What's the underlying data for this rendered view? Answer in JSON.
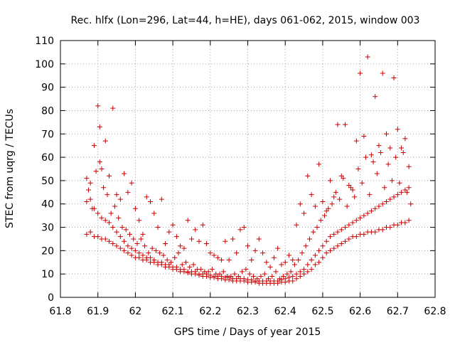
{
  "chart_data": {
    "type": "scatter",
    "title": "Rec. hlfx (Lon=296, Lat=44, h=HE), days 061-062, 2015, window 003",
    "xlabel": "GPS time / Days of year 2015",
    "ylabel": "STEC from uqrg / TECUs",
    "xlim": [
      61.8,
      62.8
    ],
    "ylim": [
      0,
      110
    ],
    "xticks": [
      "61.8",
      "61.9",
      "62",
      "62.1",
      "62.2",
      "62.3",
      "62.4",
      "62.5",
      "62.6",
      "62.7",
      "62.8"
    ],
    "yticks": [
      "0",
      "10",
      "20",
      "30",
      "40",
      "50",
      "60",
      "70",
      "80",
      "90",
      "100",
      "110"
    ],
    "grid": true,
    "marker": "plus",
    "color": "#cc0000",
    "points": [
      [
        61.87,
        27
      ],
      [
        61.88,
        28
      ],
      [
        61.89,
        26
      ],
      [
        61.9,
        26
      ],
      [
        61.91,
        25
      ],
      [
        61.92,
        25
      ],
      [
        61.93,
        24
      ],
      [
        61.94,
        23
      ],
      [
        61.95,
        22
      ],
      [
        61.96,
        21
      ],
      [
        61.97,
        20
      ],
      [
        61.98,
        19
      ],
      [
        61.99,
        18
      ],
      [
        62.0,
        17
      ],
      [
        62.01,
        17
      ],
      [
        62.02,
        16
      ],
      [
        62.03,
        16
      ],
      [
        62.04,
        15
      ],
      [
        62.05,
        15
      ],
      [
        62.06,
        14
      ],
      [
        62.07,
        14
      ],
      [
        62.08,
        13
      ],
      [
        62.09,
        13
      ],
      [
        62.1,
        12
      ],
      [
        62.11,
        12
      ],
      [
        62.12,
        11
      ],
      [
        62.13,
        11
      ],
      [
        62.14,
        10.5
      ],
      [
        62.15,
        10
      ],
      [
        62.16,
        10
      ],
      [
        62.17,
        9.5
      ],
      [
        62.18,
        9
      ],
      [
        62.19,
        9
      ],
      [
        62.2,
        8.5
      ],
      [
        62.21,
        8.5
      ],
      [
        62.22,
        8
      ],
      [
        62.23,
        8
      ],
      [
        62.24,
        7.5
      ],
      [
        62.25,
        7.5
      ],
      [
        62.26,
        7
      ],
      [
        62.27,
        7
      ],
      [
        62.28,
        7
      ],
      [
        62.29,
        7
      ],
      [
        62.3,
        6.5
      ],
      [
        62.31,
        6.5
      ],
      [
        62.32,
        6.5
      ],
      [
        62.33,
        6
      ],
      [
        62.34,
        6
      ],
      [
        62.35,
        6
      ],
      [
        62.36,
        6
      ],
      [
        62.37,
        6
      ],
      [
        62.38,
        6
      ],
      [
        62.39,
        6.5
      ],
      [
        62.4,
        6.5
      ],
      [
        62.41,
        7
      ],
      [
        62.42,
        7
      ],
      [
        62.43,
        8
      ],
      [
        62.44,
        9
      ],
      [
        62.45,
        10
      ],
      [
        62.46,
        11
      ],
      [
        62.47,
        12
      ],
      [
        62.48,
        14
      ],
      [
        62.49,
        15
      ],
      [
        62.5,
        17
      ],
      [
        62.51,
        19
      ],
      [
        62.52,
        20
      ],
      [
        62.53,
        21
      ],
      [
        62.54,
        22
      ],
      [
        62.55,
        23
      ],
      [
        62.56,
        24
      ],
      [
        62.57,
        25
      ],
      [
        62.58,
        26
      ],
      [
        62.59,
        26
      ],
      [
        62.6,
        27
      ],
      [
        62.61,
        27
      ],
      [
        62.62,
        28
      ],
      [
        62.63,
        28
      ],
      [
        62.64,
        28
      ],
      [
        62.65,
        29
      ],
      [
        62.66,
        29
      ],
      [
        62.67,
        30
      ],
      [
        62.68,
        30
      ],
      [
        62.69,
        31
      ],
      [
        62.7,
        31
      ],
      [
        62.71,
        32
      ],
      [
        62.72,
        32
      ],
      [
        62.73,
        33
      ],
      [
        61.87,
        41
      ],
      [
        61.88,
        42
      ],
      [
        61.89,
        38
      ],
      [
        61.9,
        36
      ],
      [
        61.91,
        34
      ],
      [
        61.92,
        33
      ],
      [
        61.93,
        32
      ],
      [
        61.94,
        30
      ],
      [
        61.95,
        28
      ],
      [
        61.96,
        26
      ],
      [
        61.97,
        24
      ],
      [
        61.98,
        22
      ],
      [
        61.99,
        21
      ],
      [
        62.0,
        20
      ],
      [
        62.01,
        19
      ],
      [
        62.02,
        18
      ],
      [
        62.03,
        17
      ],
      [
        62.04,
        17
      ],
      [
        62.05,
        16
      ],
      [
        62.06,
        15
      ],
      [
        62.07,
        15
      ],
      [
        62.08,
        14
      ],
      [
        62.09,
        14
      ],
      [
        62.1,
        13
      ],
      [
        62.11,
        13
      ],
      [
        62.12,
        12
      ],
      [
        62.13,
        12
      ],
      [
        62.14,
        11
      ],
      [
        62.15,
        11
      ],
      [
        62.16,
        11
      ],
      [
        62.17,
        10
      ],
      [
        62.18,
        10
      ],
      [
        62.19,
        10
      ],
      [
        62.2,
        9.5
      ],
      [
        62.21,
        9
      ],
      [
        62.22,
        9
      ],
      [
        62.23,
        9
      ],
      [
        62.24,
        8.5
      ],
      [
        62.25,
        8.5
      ],
      [
        62.26,
        8
      ],
      [
        62.27,
        8
      ],
      [
        62.28,
        8
      ],
      [
        62.29,
        8
      ],
      [
        62.3,
        7.5
      ],
      [
        62.31,
        7.5
      ],
      [
        62.32,
        7
      ],
      [
        62.33,
        7
      ],
      [
        62.34,
        7
      ],
      [
        62.35,
        7
      ],
      [
        62.36,
        7
      ],
      [
        62.37,
        7
      ],
      [
        62.38,
        7
      ],
      [
        62.39,
        7.5
      ],
      [
        62.4,
        8
      ],
      [
        62.41,
        8.5
      ],
      [
        62.42,
        9
      ],
      [
        62.43,
        10
      ],
      [
        62.44,
        11
      ],
      [
        62.45,
        12
      ],
      [
        62.46,
        14
      ],
      [
        62.47,
        16
      ],
      [
        62.48,
        18
      ],
      [
        62.49,
        20
      ],
      [
        62.5,
        22
      ],
      [
        62.51,
        24
      ],
      [
        62.52,
        26
      ],
      [
        62.53,
        27
      ],
      [
        62.54,
        28
      ],
      [
        62.55,
        29
      ],
      [
        62.56,
        30
      ],
      [
        62.57,
        31
      ],
      [
        62.58,
        32
      ],
      [
        62.59,
        33
      ],
      [
        62.6,
        34
      ],
      [
        62.61,
        35
      ],
      [
        62.62,
        36
      ],
      [
        62.63,
        37
      ],
      [
        62.64,
        38
      ],
      [
        62.65,
        39
      ],
      [
        62.66,
        40
      ],
      [
        62.67,
        41
      ],
      [
        62.68,
        42
      ],
      [
        62.69,
        43
      ],
      [
        62.7,
        44
      ],
      [
        62.71,
        45
      ],
      [
        62.72,
        46
      ],
      [
        62.73,
        47
      ],
      [
        61.87,
        51
      ],
      [
        61.88,
        49
      ],
      [
        61.89,
        65
      ],
      [
        61.9,
        82
      ],
      [
        61.905,
        73
      ],
      [
        61.91,
        55
      ],
      [
        61.92,
        67
      ],
      [
        61.93,
        52
      ],
      [
        61.94,
        81
      ],
      [
        61.95,
        44
      ],
      [
        61.96,
        42
      ],
      [
        61.97,
        53
      ],
      [
        61.98,
        45
      ],
      [
        61.99,
        49
      ],
      [
        62.0,
        38
      ],
      [
        62.01,
        33
      ],
      [
        62.02,
        27
      ],
      [
        62.03,
        43
      ],
      [
        62.04,
        41
      ],
      [
        62.05,
        36
      ],
      [
        62.06,
        30
      ],
      [
        62.07,
        42
      ],
      [
        62.08,
        23
      ],
      [
        62.09,
        28
      ],
      [
        62.1,
        31
      ],
      [
        62.11,
        26
      ],
      [
        62.12,
        22
      ],
      [
        62.13,
        21
      ],
      [
        62.14,
        33
      ],
      [
        62.15,
        25
      ],
      [
        62.16,
        29
      ],
      [
        62.17,
        24
      ],
      [
        62.18,
        31
      ],
      [
        62.19,
        23
      ],
      [
        62.2,
        19
      ],
      [
        62.21,
        18
      ],
      [
        62.22,
        17
      ],
      [
        62.23,
        16
      ],
      [
        62.24,
        24
      ],
      [
        62.25,
        16
      ],
      [
        62.26,
        25
      ],
      [
        62.27,
        19
      ],
      [
        62.28,
        29
      ],
      [
        62.29,
        30
      ],
      [
        62.3,
        22
      ],
      [
        62.31,
        16
      ],
      [
        62.32,
        20
      ],
      [
        62.33,
        25
      ],
      [
        62.34,
        19
      ],
      [
        62.35,
        15
      ],
      [
        62.36,
        13
      ],
      [
        62.37,
        17
      ],
      [
        62.38,
        21
      ],
      [
        62.39,
        14
      ],
      [
        62.4,
        15
      ],
      [
        62.41,
        18
      ],
      [
        62.42,
        16
      ],
      [
        62.43,
        31
      ],
      [
        62.44,
        40
      ],
      [
        62.45,
        36
      ],
      [
        62.46,
        52
      ],
      [
        62.47,
        44
      ],
      [
        62.48,
        39
      ],
      [
        62.49,
        57
      ],
      [
        62.5,
        41
      ],
      [
        62.51,
        37
      ],
      [
        62.52,
        50
      ],
      [
        62.53,
        43
      ],
      [
        62.54,
        74
      ],
      [
        62.55,
        52
      ],
      [
        62.56,
        74
      ],
      [
        62.57,
        48
      ],
      [
        62.58,
        46
      ],
      [
        62.59,
        67
      ],
      [
        62.6,
        96
      ],
      [
        62.61,
        69
      ],
      [
        62.62,
        103
      ],
      [
        62.63,
        61
      ],
      [
        62.64,
        86
      ],
      [
        62.65,
        65
      ],
      [
        62.66,
        96
      ],
      [
        62.67,
        70
      ],
      [
        62.68,
        64
      ],
      [
        62.69,
        94
      ],
      [
        62.7,
        72
      ],
      [
        62.71,
        64
      ],
      [
        62.72,
        68
      ],
      [
        62.73,
        56
      ],
      [
        61.875,
        46
      ],
      [
        61.885,
        38
      ],
      [
        61.895,
        54
      ],
      [
        61.905,
        58
      ],
      [
        61.915,
        47
      ],
      [
        61.925,
        44
      ],
      [
        61.935,
        36
      ],
      [
        61.945,
        39
      ],
      [
        61.955,
        34
      ],
      [
        61.965,
        30
      ],
      [
        61.975,
        29
      ],
      [
        61.985,
        27
      ],
      [
        61.995,
        25
      ],
      [
        62.005,
        23
      ],
      [
        62.015,
        25
      ],
      [
        62.025,
        22
      ],
      [
        62.035,
        19
      ],
      [
        62.045,
        21
      ],
      [
        62.055,
        20
      ],
      [
        62.065,
        19
      ],
      [
        62.075,
        18
      ],
      [
        62.085,
        16
      ],
      [
        62.095,
        15
      ],
      [
        62.105,
        17
      ],
      [
        62.115,
        19
      ],
      [
        62.125,
        14
      ],
      [
        62.135,
        15
      ],
      [
        62.145,
        13
      ],
      [
        62.155,
        14
      ],
      [
        62.165,
        12
      ],
      [
        62.175,
        12
      ],
      [
        62.185,
        11
      ],
      [
        62.195,
        11
      ],
      [
        62.205,
        12
      ],
      [
        62.215,
        10
      ],
      [
        62.225,
        10
      ],
      [
        62.235,
        11
      ],
      [
        62.245,
        9
      ],
      [
        62.255,
        9
      ],
      [
        62.265,
        10
      ],
      [
        62.275,
        9
      ],
      [
        62.285,
        11
      ],
      [
        62.295,
        12
      ],
      [
        62.305,
        10
      ],
      [
        62.315,
        9
      ],
      [
        62.325,
        8
      ],
      [
        62.335,
        9
      ],
      [
        62.345,
        10
      ],
      [
        62.355,
        8
      ],
      [
        62.365,
        9
      ],
      [
        62.375,
        11
      ],
      [
        62.385,
        8
      ],
      [
        62.395,
        9
      ],
      [
        62.405,
        10
      ],
      [
        62.415,
        11
      ],
      [
        62.425,
        14
      ],
      [
        62.435,
        16
      ],
      [
        62.445,
        19
      ],
      [
        62.455,
        22
      ],
      [
        62.465,
        25
      ],
      [
        62.475,
        28
      ],
      [
        62.485,
        30
      ],
      [
        62.495,
        33
      ],
      [
        62.505,
        35
      ],
      [
        62.515,
        38
      ],
      [
        62.525,
        40
      ],
      [
        62.535,
        45
      ],
      [
        62.545,
        42
      ],
      [
        62.555,
        51
      ],
      [
        62.565,
        39
      ],
      [
        62.575,
        47
      ],
      [
        62.585,
        43
      ],
      [
        62.595,
        55
      ],
      [
        62.605,
        49
      ],
      [
        62.615,
        60
      ],
      [
        62.625,
        44
      ],
      [
        62.635,
        58
      ],
      [
        62.645,
        53
      ],
      [
        62.655,
        62
      ],
      [
        62.665,
        47
      ],
      [
        62.675,
        57
      ],
      [
        62.685,
        50
      ],
      [
        62.695,
        60
      ],
      [
        62.705,
        49
      ],
      [
        62.715,
        62
      ],
      [
        62.725,
        45
      ],
      [
        62.735,
        40
      ]
    ]
  }
}
